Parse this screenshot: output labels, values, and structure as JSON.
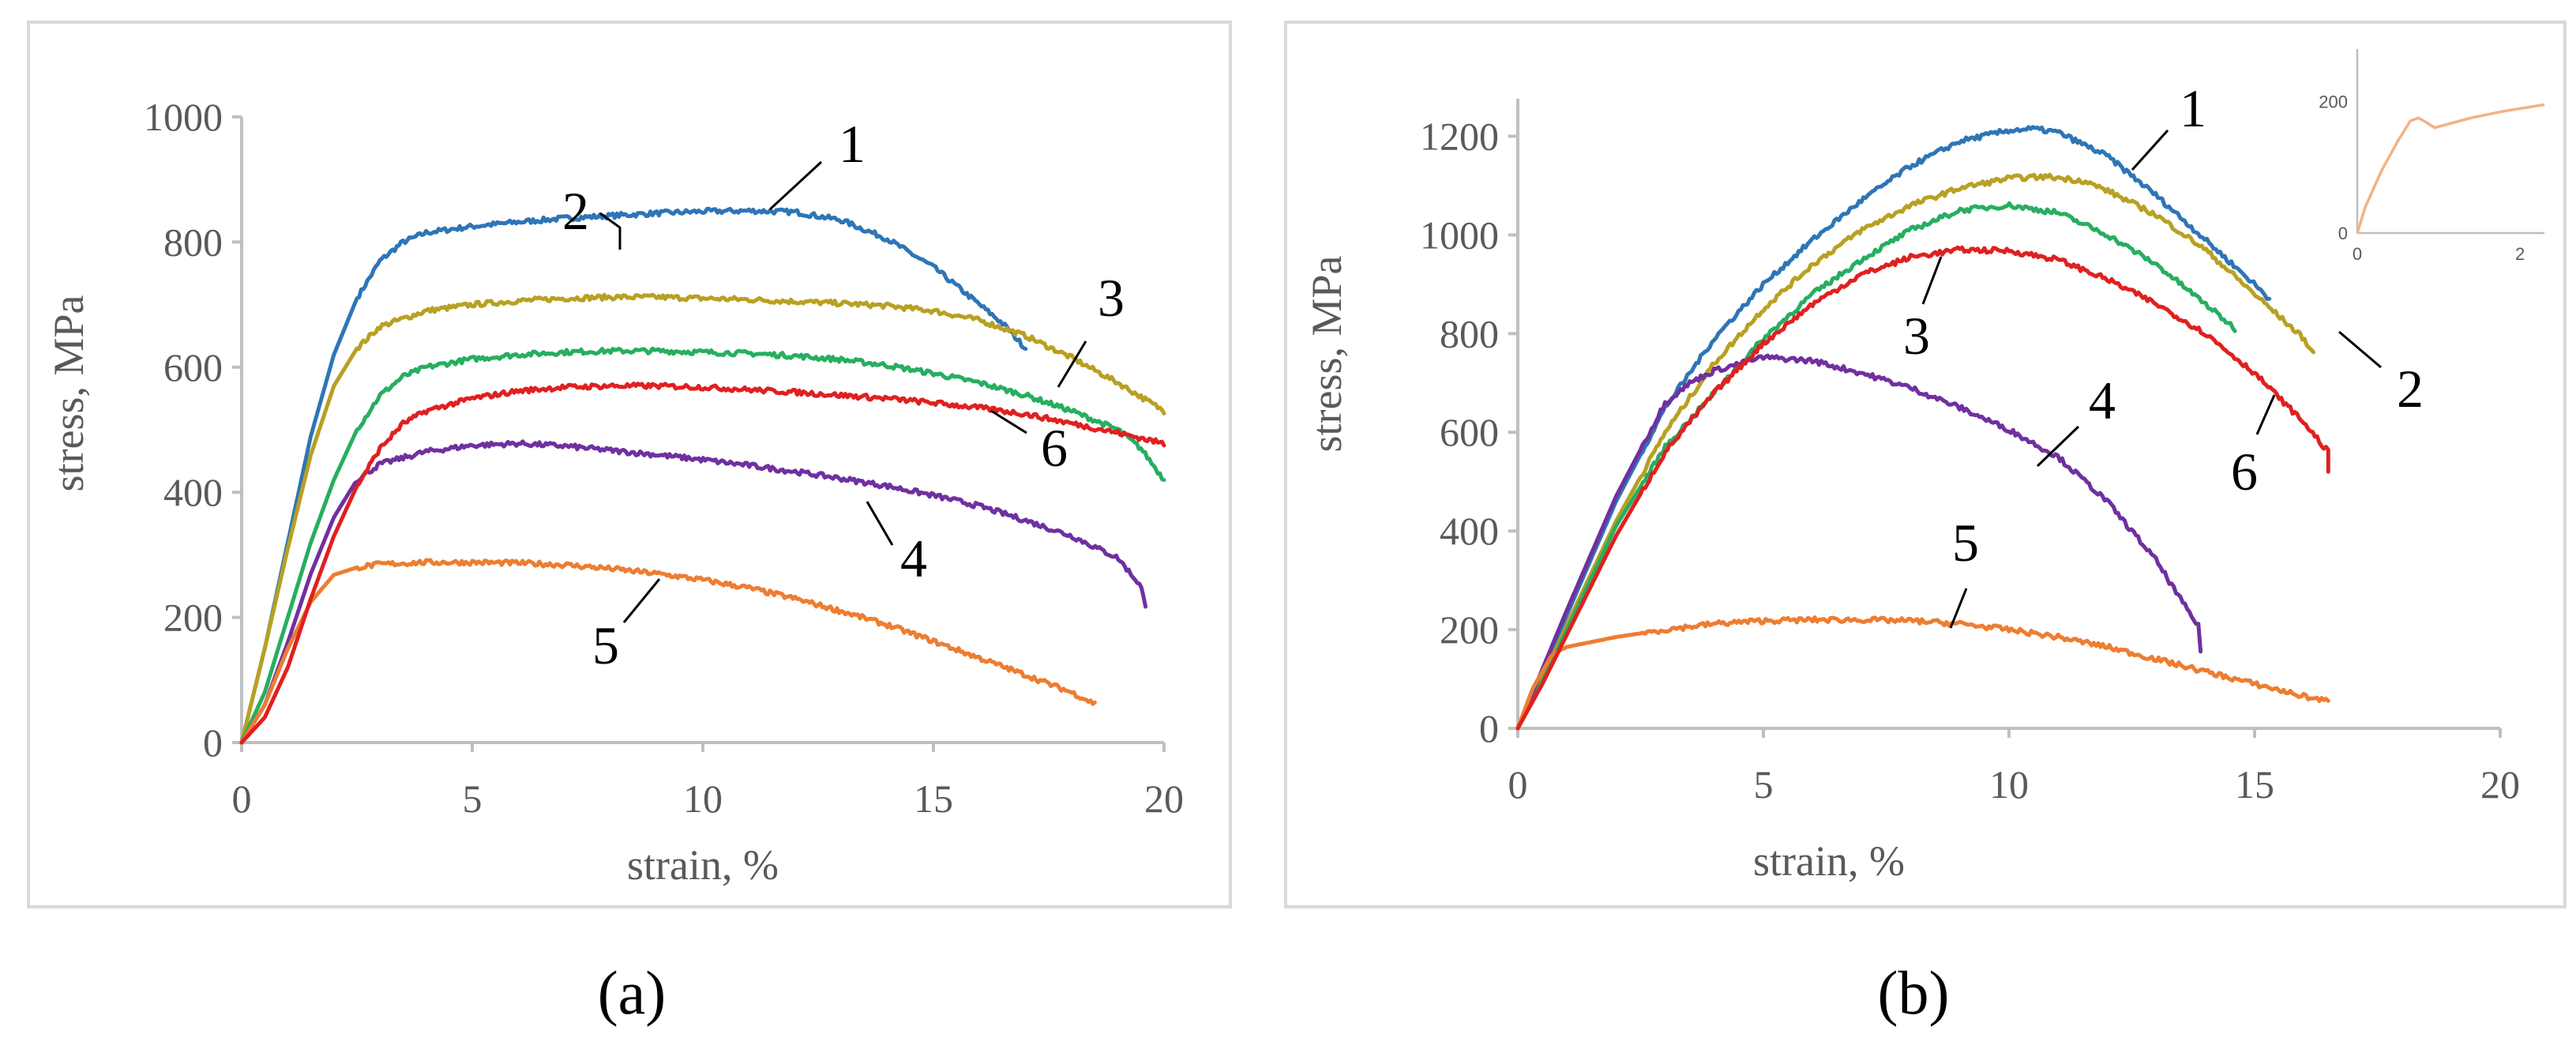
{
  "chart_data": [
    {
      "type": "line",
      "panel_label": "(a)",
      "xlabel": "strain, %",
      "ylabel": "stress, MPa",
      "xlim": [
        0,
        20
      ],
      "ylim": [
        0,
        1000
      ],
      "xticks": [
        "0",
        "5",
        "10",
        "15",
        "20"
      ],
      "yticks": [
        "0",
        "200",
        "400",
        "600",
        "800",
        "1000"
      ],
      "series": [
        {
          "name": "1",
          "color": "#2e75b6",
          "x": [
            0,
            0.5,
            1,
            1.5,
            2,
            2.5,
            3,
            3.5,
            4,
            5,
            6,
            7,
            8,
            9,
            10,
            11,
            12,
            13,
            14,
            15,
            16,
            16.5,
            17
          ],
          "y": [
            0,
            150,
            320,
            490,
            620,
            710,
            770,
            800,
            815,
            825,
            832,
            838,
            842,
            846,
            849,
            850,
            848,
            835,
            805,
            760,
            700,
            670,
            630
          ]
        },
        {
          "name": "2",
          "color": "#b8a022",
          "x": [
            0,
            0.5,
            1,
            1.5,
            2,
            2.5,
            3,
            4,
            5,
            6,
            7,
            8,
            9,
            10,
            11,
            12,
            13,
            14,
            15,
            16,
            17,
            18,
            19,
            20
          ],
          "y": [
            0,
            150,
            310,
            460,
            570,
            630,
            665,
            690,
            700,
            706,
            710,
            712,
            712,
            710,
            708,
            705,
            702,
            698,
            690,
            675,
            650,
            615,
            575,
            530
          ]
        },
        {
          "name": "3",
          "color": "#27ae60",
          "x": [
            0,
            0.5,
            1,
            1.5,
            2,
            2.5,
            3,
            3.5,
            4,
            5,
            6,
            7,
            8,
            9,
            10,
            11,
            12,
            13,
            14,
            15,
            16,
            17,
            18,
            19,
            19.5,
            20
          ],
          "y": [
            0,
            80,
            200,
            320,
            420,
            500,
            555,
            585,
            600,
            613,
            620,
            624,
            626,
            626,
            624,
            622,
            618,
            612,
            603,
            590,
            575,
            555,
            530,
            500,
            470,
            420
          ]
        },
        {
          "name": "4",
          "color": "#7030a0",
          "x": [
            0,
            0.5,
            1,
            1.5,
            2,
            2.5,
            3,
            4,
            5,
            6,
            7,
            8,
            9,
            10,
            11,
            12,
            13,
            14,
            15,
            16,
            17,
            18,
            19,
            19.5,
            19.6
          ],
          "y": [
            0,
            60,
            160,
            270,
            360,
            420,
            445,
            465,
            475,
            478,
            474,
            467,
            460,
            452,
            443,
            433,
            422,
            410,
            395,
            378,
            355,
            330,
            295,
            250,
            215
          ]
        },
        {
          "name": "5",
          "color": "#ed7d31",
          "x": [
            0,
            0.5,
            1,
            1.5,
            2,
            2.5,
            3,
            4,
            5,
            6,
            7,
            8,
            9,
            10,
            11,
            12,
            13,
            14,
            15,
            16,
            17,
            18,
            18.5
          ],
          "y": [
            0,
            60,
            150,
            225,
            268,
            280,
            285,
            288,
            288,
            287,
            284,
            278,
            270,
            260,
            247,
            230,
            210,
            188,
            162,
            135,
            108,
            80,
            62
          ]
        },
        {
          "name": "6",
          "color": "#e02020",
          "x": [
            0,
            0.5,
            1,
            1.5,
            2,
            2.5,
            3,
            3.5,
            4,
            5,
            6,
            7,
            8,
            9,
            10,
            11,
            12,
            13,
            14,
            15,
            16,
            17,
            18,
            19,
            20
          ],
          "y": [
            0,
            40,
            120,
            230,
            330,
            410,
            470,
            510,
            530,
            550,
            562,
            568,
            570,
            570,
            568,
            564,
            560,
            555,
            550,
            543,
            535,
            525,
            510,
            495,
            478
          ]
        }
      ],
      "annotations": [
        "1",
        "2",
        "3",
        "6",
        "4",
        "5"
      ]
    },
    {
      "type": "line",
      "panel_label": "(b)",
      "xlabel": "strain, %",
      "ylabel": "stress, MPa",
      "xlim": [
        0,
        20
      ],
      "ylim": [
        0,
        1300
      ],
      "xticks": [
        "0",
        "5",
        "10",
        "15",
        "20"
      ],
      "yticks": [
        "0",
        "200",
        "400",
        "600",
        "800",
        "1000",
        "1200"
      ],
      "series": [
        {
          "name": "1",
          "color": "#2e75b6",
          "x": [
            0,
            0.5,
            1,
            2,
            3,
            4,
            5,
            6,
            7,
            8,
            9,
            10,
            10.5,
            11,
            12,
            13,
            14,
            15,
            15.3
          ],
          "y": [
            0,
            110,
            230,
            460,
            650,
            790,
            900,
            990,
            1070,
            1140,
            1190,
            1212,
            1215,
            1208,
            1160,
            1080,
            990,
            900,
            870
          ]
        },
        {
          "name": "2",
          "color": "#b8a022",
          "x": [
            0,
            0.5,
            1,
            2,
            3,
            4,
            5,
            6,
            7,
            8,
            9,
            10,
            10.8,
            11.5,
            12,
            13,
            14,
            15,
            16,
            16.2
          ],
          "y": [
            0,
            100,
            210,
            420,
            600,
            740,
            850,
            940,
            1010,
            1060,
            1095,
            1115,
            1118,
            1110,
            1090,
            1040,
            970,
            880,
            790,
            760
          ]
        },
        {
          "name": "3",
          "color": "#27ae60",
          "x": [
            0,
            0.5,
            1,
            2,
            3,
            4,
            5,
            6,
            7,
            8,
            9,
            10,
            11,
            12,
            13,
            14,
            14.6
          ],
          "y": [
            0,
            95,
            200,
            410,
            570,
            680,
            790,
            880,
            950,
            1010,
            1050,
            1060,
            1045,
            1000,
            940,
            860,
            810
          ]
        },
        {
          "name": "4",
          "color": "#7030a0",
          "x": [
            0,
            0.5,
            1,
            2,
            3,
            3.5,
            4,
            5,
            6,
            7,
            8,
            9,
            10,
            11,
            12,
            12.5,
            13,
            13.5,
            13.9,
            13.9
          ],
          "y": [
            0,
            120,
            240,
            470,
            660,
            700,
            725,
            752,
            745,
            720,
            690,
            650,
            605,
            550,
            460,
            400,
            340,
            260,
            200,
            160
          ]
        },
        {
          "name": "5",
          "color": "#ed7d31",
          "x": [
            0,
            0.3,
            0.7,
            1,
            2,
            3,
            4,
            5,
            6,
            7,
            8,
            9,
            10,
            11,
            12,
            13,
            14,
            15,
            16,
            16.5
          ],
          "y": [
            0,
            80,
            150,
            165,
            185,
            200,
            212,
            218,
            220,
            220,
            218,
            212,
            200,
            185,
            165,
            140,
            115,
            90,
            65,
            55
          ]
        },
        {
          "name": "6",
          "color": "#e02020",
          "x": [
            0,
            0.5,
            1,
            2,
            3,
            4,
            5,
            6,
            7,
            8,
            9,
            10,
            11,
            12,
            13,
            14,
            15,
            16,
            16.5,
            16.5
          ],
          "y": [
            0,
            90,
            190,
            390,
            560,
            680,
            780,
            860,
            920,
            955,
            970,
            968,
            950,
            910,
            860,
            800,
            720,
            620,
            560,
            520
          ]
        }
      ],
      "annotations": [
        "1",
        "2",
        "3",
        "6",
        "4",
        "5"
      ],
      "inset": {
        "xlim": [
          0,
          2.3
        ],
        "ylim": [
          0,
          210
        ],
        "xticks": [
          "0",
          "2"
        ],
        "yticks": [
          "0",
          "200"
        ],
        "color": "#f4b183",
        "x": [
          0,
          0.1,
          0.3,
          0.5,
          0.65,
          0.75,
          0.85,
          0.95,
          1.1,
          1.4,
          1.8,
          2.3
        ],
        "y": [
          0,
          40,
          95,
          140,
          170,
          175,
          168,
          160,
          165,
          175,
          185,
          195
        ]
      }
    }
  ]
}
